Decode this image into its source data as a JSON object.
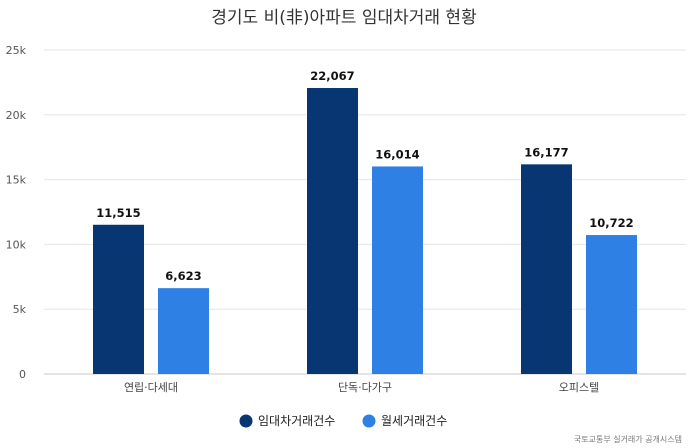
{
  "chart_data": {
    "type": "bar",
    "title": "경기도 비(非)아파트 임대차거래 현황",
    "categories": [
      "연립·다세대",
      "단독·다가구",
      "오피스텔"
    ],
    "series": [
      {
        "name": "임대차거래건수",
        "values": [
          11515,
          22067,
          16177
        ],
        "labels": [
          "11,515",
          "22,067",
          "16,177"
        ],
        "color": "#073673"
      },
      {
        "name": "월세거래건수",
        "values": [
          6623,
          16014,
          10722
        ],
        "labels": [
          "6,623",
          "16,014",
          "10,722"
        ],
        "color": "#2f80e4"
      }
    ],
    "ylim": [
      0,
      25000
    ],
    "yticks": [
      0,
      5000,
      10000,
      15000,
      20000,
      25000
    ],
    "ytick_labels": [
      "0",
      "5k",
      "10k",
      "15k",
      "20k",
      "25k"
    ],
    "grid": true,
    "legend_position": "bottom-center",
    "source": "국토교통부 실거래가 공개시스템"
  }
}
